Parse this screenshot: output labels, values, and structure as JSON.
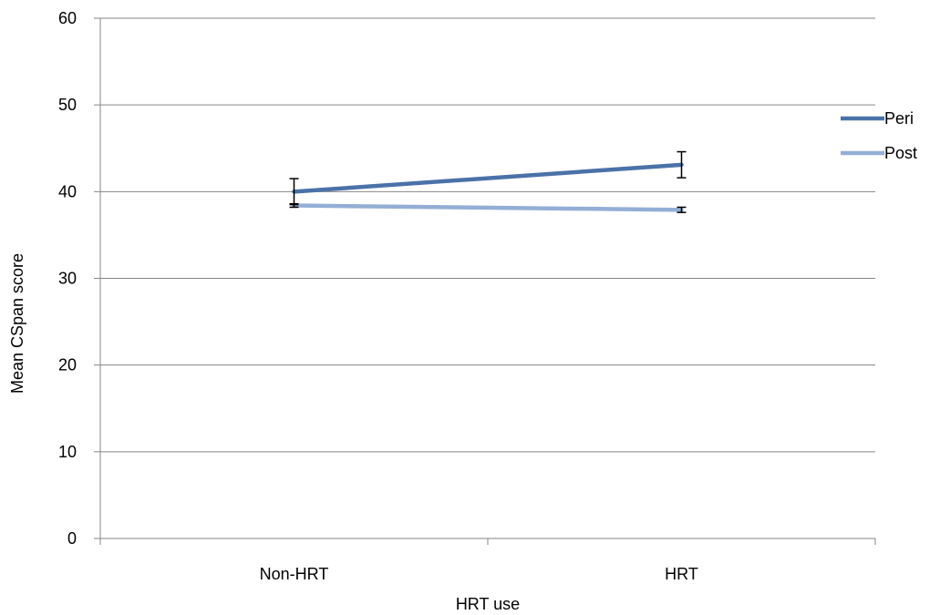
{
  "chart_data": {
    "type": "line",
    "title": "",
    "xlabel": "HRT use",
    "ylabel": "Mean CSpan score",
    "categories": [
      "Non-HRT",
      "HRT"
    ],
    "ylim": [
      0,
      60
    ],
    "yticks": [
      "0",
      "10",
      "20",
      "30",
      "40",
      "50",
      "60"
    ],
    "grid": true,
    "legend_position": "right",
    "series": [
      {
        "name": "Peri",
        "color": "#4a72a8",
        "values": [
          40.0,
          43.1
        ],
        "error_low": [
          38.5,
          41.6
        ],
        "error_high": [
          41.5,
          44.6
        ]
      },
      {
        "name": "Post",
        "color": "#93aed6",
        "values": [
          38.4,
          37.9
        ],
        "error_low": [
          38.2,
          37.6
        ],
        "error_high": [
          38.6,
          38.2
        ]
      }
    ]
  }
}
